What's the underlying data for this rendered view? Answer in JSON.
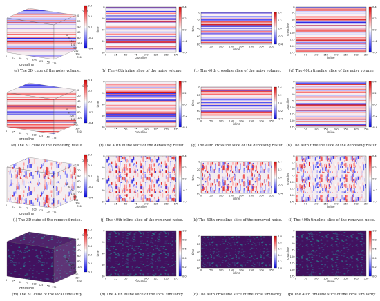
{
  "rows": [
    {
      "colormap": "seismic",
      "slice_cb_ticks": [
        "0.4",
        "0.2",
        "0.0",
        "-0.2",
        "-0.4"
      ],
      "cube_cb_ticks": [
        "0.4",
        "0.2",
        "0.0",
        "-0.2",
        "-0.4"
      ],
      "captions": [
        "(a) The 3D cube of the noisy volume.",
        "(b) The 40th inline slice of the noisy volume.",
        "(c) The 40th crossline slice of the noisy volume.",
        "(d) The 40th timeline slice of the noisy volume."
      ]
    },
    {
      "colormap": "seismic",
      "slice_cb_ticks": [
        "0.4",
        "0.2",
        "0.0",
        "-0.2",
        "-0.4"
      ],
      "cube_cb_ticks": [
        "0.4",
        "0.2",
        "0.0",
        "-0.2",
        "-0.4"
      ],
      "captions": [
        "(e) The 3D cube of the denoising result.",
        "(f) The 40th inline slice of the denoising result.",
        "(g) The 40th crossline slice of the denoising result.",
        "(h) The 40th timeline slice of the denoising result."
      ]
    },
    {
      "colormap": "seismic",
      "slice_cb_ticks": [
        "0.4",
        "0.2",
        "0.0",
        "-0.2",
        "-0.4"
      ],
      "cube_cb_ticks": [
        "0.4",
        "0.2",
        "0.0",
        "-0.2",
        "-0.4"
      ],
      "captions": [
        "(i) The 3D cube of the removed noise.",
        "(j) The 40th inline slice of the removed noise.",
        "(k) The 40th crossline slice of the removed noise.",
        "(l) The 40th timeline slice of the removed noise."
      ]
    },
    {
      "colormap": "viridis",
      "slice_cb_ticks": [
        "1.0",
        "0.8",
        "0.6",
        "0.4",
        "0.2",
        "0.0"
      ],
      "cube_cb_ticks": [
        "1.0",
        "0.8",
        "0.6",
        "0.4",
        "0.2",
        "0.0"
      ],
      "captions": [
        "(m) The 3D cube of the local similarity.",
        "(n) The 40th inline slice of the local similarity.",
        "(o) The 40th crossline slice of the local similarity.",
        "(p) The 40th timeline slice of the local similarity."
      ]
    }
  ],
  "cube": {
    "time_label": "time",
    "crossline_label": "crossline",
    "inline_label": "inline",
    "time_ticks": [
      "0",
      "20",
      "40",
      "60",
      "80",
      "100"
    ],
    "crossline_ticks": [
      "0",
      "25",
      "50",
      "75",
      "100",
      "125",
      "150",
      "175"
    ],
    "inline_ticks": [
      "0",
      "50",
      "100",
      "150",
      "200",
      "250",
      "300",
      "350"
    ]
  },
  "inline_slice": {
    "xlabel": "crossline",
    "ylabel": "time",
    "xticks": [
      "0",
      "25",
      "50",
      "75",
      "100",
      "125",
      "150",
      "175"
    ],
    "yticks": [
      "0",
      "20",
      "40",
      "60",
      "80"
    ]
  },
  "crossline_slice": {
    "xlabel": "inline",
    "ylabel": "time",
    "xticks": [
      "0",
      "50",
      "100",
      "150",
      "200",
      "250",
      "300",
      "350"
    ],
    "yticks": [
      "0",
      "20",
      "40",
      "60",
      "80"
    ]
  },
  "timeline_slice": {
    "xlabel": "inline",
    "ylabel": "crossline",
    "xticks": [
      "0",
      "50",
      "100",
      "150",
      "200",
      "250",
      "300",
      "350"
    ],
    "yticks": [
      "0",
      "25",
      "50",
      "75",
      "100",
      "125",
      "150",
      "175"
    ]
  }
}
